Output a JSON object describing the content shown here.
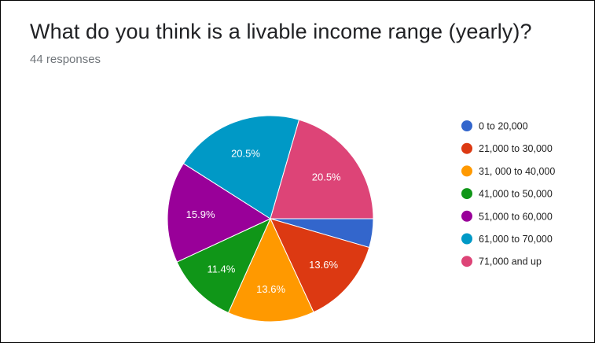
{
  "form": {
    "question": "What do you think is a livable income range (yearly)?",
    "responses": "44 responses"
  },
  "chart_data": {
    "type": "pie",
    "title": "What do you think is a livable income range (yearly)?",
    "subtitle": "44 responses",
    "legend_position": "right",
    "slices": [
      {
        "label": "0 to 20,000",
        "value": 4.5,
        "value_label": "",
        "color": "#3366cc"
      },
      {
        "label": "21,000 to 30,000",
        "value": 13.6,
        "value_label": "13.6%",
        "color": "#dc3912"
      },
      {
        "label": "31, 000 to 40,000",
        "value": 13.6,
        "value_label": "13.6%",
        "color": "#ff9900"
      },
      {
        "label": "41,000 to 50,000",
        "value": 11.4,
        "value_label": "11.4%",
        "color": "#109618"
      },
      {
        "label": "51,000 to 60,000",
        "value": 15.9,
        "value_label": "15.9%",
        "color": "#990099"
      },
      {
        "label": "61,000 to 70,000",
        "value": 20.5,
        "value_label": "20.5%",
        "color": "#0099c6"
      },
      {
        "label": "71,000 and up",
        "value": 20.5,
        "value_label": "20.5%",
        "color": "#dd4477"
      }
    ]
  }
}
